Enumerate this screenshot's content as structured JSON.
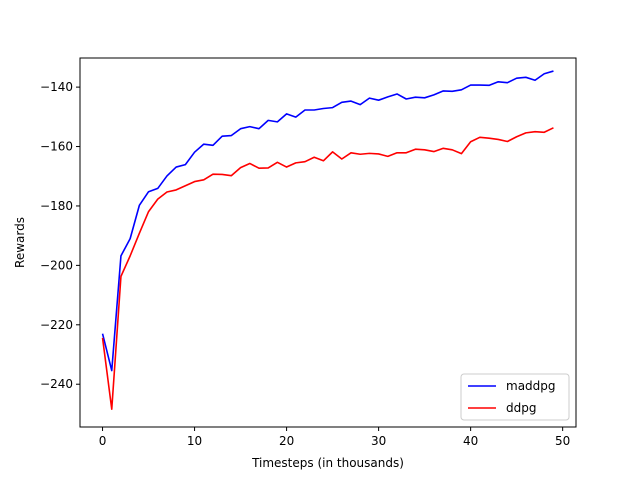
{
  "chart_data": {
    "type": "line",
    "title": "",
    "xlabel": "Timesteps (in thousands)",
    "ylabel": "Rewards",
    "xlim": [
      -2.45,
      51.45
    ],
    "ylim": [
      -254.4,
      -130.2
    ],
    "xticks": [
      0,
      10,
      20,
      30,
      40,
      50
    ],
    "yticks": [
      -240,
      -220,
      -200,
      -180,
      -160,
      -140
    ],
    "xtick_labels": [
      "0",
      "10",
      "20",
      "30",
      "40",
      "50"
    ],
    "ytick_labels": [
      "−240",
      "−220",
      "−200",
      "−180",
      "−160",
      "−140"
    ],
    "grid": false,
    "legend_position": "lower right",
    "x": [
      0,
      1,
      2,
      3,
      4,
      5,
      6,
      7,
      8,
      9,
      10,
      11,
      12,
      13,
      14,
      15,
      16,
      17,
      18,
      19,
      20,
      21,
      22,
      23,
      24,
      25,
      26,
      27,
      28,
      29,
      30,
      31,
      32,
      33,
      34,
      35,
      36,
      37,
      38,
      39,
      40,
      41,
      42,
      43,
      44,
      45,
      46,
      47,
      48,
      49
    ],
    "series": [
      {
        "name": "maddpg",
        "color": "#0000ff",
        "values": [
          -223,
          -235.4,
          -196.8,
          -191,
          -179.8,
          -175.2,
          -174.1,
          -169.9,
          -166.9,
          -166.1,
          -161.9,
          -159.2,
          -159.6,
          -156.5,
          -156.3,
          -154,
          -153.3,
          -154,
          -151.2,
          -151.7,
          -149,
          -150.1,
          -147.7,
          -147.7,
          -147.2,
          -146.9,
          -145.1,
          -144.7,
          -145.9,
          -143.7,
          -144.4,
          -143.3,
          -142.3,
          -144,
          -143.4,
          -143.6,
          -142.6,
          -141.3,
          -141.4,
          -140.9,
          -139.3,
          -139.3,
          -139.4,
          -138.2,
          -138.5,
          -137,
          -136.7,
          -137.7,
          -135.5,
          -134.6
        ]
      },
      {
        "name": "ddpg",
        "color": "#ff0000",
        "values": [
          -224.4,
          -248.4,
          -203.7,
          -196.8,
          -189.2,
          -181.9,
          -177.7,
          -175.3,
          -174.6,
          -173.2,
          -171.8,
          -171.2,
          -169.3,
          -169.4,
          -169.8,
          -167.1,
          -165.7,
          -167.3,
          -167.2,
          -165.3,
          -166.9,
          -165.5,
          -165.1,
          -163.6,
          -164.8,
          -161.8,
          -164.2,
          -162.1,
          -162.6,
          -162.3,
          -162.5,
          -163.3,
          -162.1,
          -162.1,
          -160.9,
          -161.1,
          -161.7,
          -160.6,
          -161.1,
          -162.4,
          -158.4,
          -156.9,
          -157.2,
          -157.6,
          -158.3,
          -156.7,
          -155.4,
          -155,
          -155.2,
          -153.7
        ]
      }
    ]
  }
}
